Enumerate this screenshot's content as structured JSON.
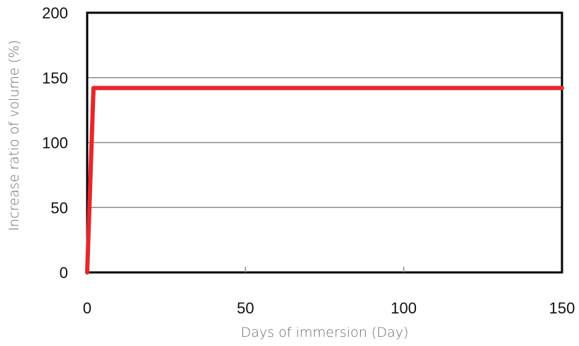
{
  "chart_data": {
    "type": "line",
    "title": "",
    "xlabel": "Days of immersion (Day)",
    "ylabel": "Increase ratio of volume (%)",
    "xlim": [
      0,
      150
    ],
    "ylim": [
      0,
      200
    ],
    "x_ticks": [
      "0",
      "50",
      "100",
      "150"
    ],
    "y_ticks": [
      "0",
      "50",
      "100",
      "150",
      "200"
    ],
    "grid": "horizontal",
    "legend": "none",
    "series": [
      {
        "color": "#e8262a",
        "x": [
          0,
          2,
          150
        ],
        "y": [
          0,
          142,
          142
        ]
      }
    ]
  }
}
